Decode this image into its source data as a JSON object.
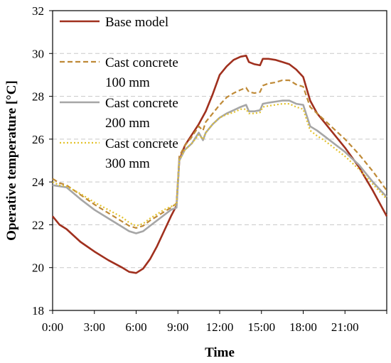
{
  "chart_data": {
    "type": "line",
    "xlabel": "Time",
    "ylabel": "Operative temperature [°C]",
    "ylim": [
      18,
      32
    ],
    "xlim": [
      0,
      24
    ],
    "yticks": [
      "18",
      "20",
      "22",
      "24",
      "26",
      "28",
      "30",
      "32"
    ],
    "xticks": [
      "0:00",
      "3:00",
      "6:00",
      "9:00",
      "12:00",
      "15:00",
      "18:00",
      "21:00"
    ],
    "grid": "horizontal dashed",
    "legend_position": "top-left",
    "series": [
      {
        "name": "Base model",
        "color": "#a0301e",
        "style": "solid",
        "legend_lines": [
          "Base model"
        ],
        "points": [
          [
            0,
            22.4
          ],
          [
            0.5,
            22.0
          ],
          [
            1,
            21.8
          ],
          [
            2,
            21.2
          ],
          [
            3,
            20.75
          ],
          [
            4,
            20.35
          ],
          [
            5,
            20.0
          ],
          [
            5.5,
            19.8
          ],
          [
            6,
            19.75
          ],
          [
            6.5,
            19.95
          ],
          [
            7,
            20.4
          ],
          [
            7.5,
            21.0
          ],
          [
            8,
            21.7
          ],
          [
            8.5,
            22.4
          ],
          [
            8.9,
            22.9
          ],
          [
            9.1,
            25.0
          ],
          [
            9.5,
            25.7
          ],
          [
            10,
            26.2
          ],
          [
            10.5,
            26.7
          ],
          [
            11,
            27.3
          ],
          [
            11.5,
            28.1
          ],
          [
            12,
            29.0
          ],
          [
            12.5,
            29.4
          ],
          [
            13,
            29.7
          ],
          [
            13.5,
            29.85
          ],
          [
            13.9,
            29.9
          ],
          [
            14.1,
            29.6
          ],
          [
            14.5,
            29.5
          ],
          [
            14.9,
            29.45
          ],
          [
            15.1,
            29.75
          ],
          [
            15.5,
            29.75
          ],
          [
            16,
            29.7
          ],
          [
            16.5,
            29.6
          ],
          [
            17,
            29.5
          ],
          [
            17.5,
            29.25
          ],
          [
            18,
            28.9
          ],
          [
            18.5,
            27.8
          ],
          [
            19,
            27.2
          ],
          [
            19.5,
            26.8
          ],
          [
            20,
            26.4
          ],
          [
            21,
            25.6
          ],
          [
            22,
            24.7
          ],
          [
            23,
            23.6
          ],
          [
            24,
            22.4
          ]
        ]
      },
      {
        "name": "Cast concrete 100 mm",
        "color": "#bf8a37",
        "style": "dashed",
        "legend_lines": [
          "Cast concrete",
          "100 mm"
        ],
        "points": [
          [
            0,
            24.15
          ],
          [
            0.5,
            23.95
          ],
          [
            1,
            23.85
          ],
          [
            2,
            23.4
          ],
          [
            3,
            22.95
          ],
          [
            4,
            22.55
          ],
          [
            5,
            22.15
          ],
          [
            5.5,
            21.95
          ],
          [
            6,
            21.85
          ],
          [
            6.5,
            21.95
          ],
          [
            7,
            22.2
          ],
          [
            7.5,
            22.4
          ],
          [
            8,
            22.6
          ],
          [
            8.5,
            22.8
          ],
          [
            8.9,
            23.0
          ],
          [
            9.1,
            25.2
          ],
          [
            9.5,
            25.7
          ],
          [
            10,
            26.1
          ],
          [
            10.5,
            26.6
          ],
          [
            10.8,
            26.4
          ],
          [
            11,
            26.8
          ],
          [
            11.5,
            27.2
          ],
          [
            12,
            27.6
          ],
          [
            12.5,
            27.95
          ],
          [
            13,
            28.15
          ],
          [
            13.5,
            28.3
          ],
          [
            13.9,
            28.4
          ],
          [
            14.1,
            28.2
          ],
          [
            14.5,
            28.15
          ],
          [
            14.9,
            28.2
          ],
          [
            15.1,
            28.5
          ],
          [
            15.5,
            28.6
          ],
          [
            16,
            28.65
          ],
          [
            16.5,
            28.75
          ],
          [
            17,
            28.75
          ],
          [
            17.5,
            28.55
          ],
          [
            18,
            28.45
          ],
          [
            18.5,
            27.5
          ],
          [
            19,
            27.2
          ],
          [
            19.5,
            26.9
          ],
          [
            20,
            26.6
          ],
          [
            21,
            26.0
          ],
          [
            22,
            25.3
          ],
          [
            23,
            24.5
          ],
          [
            24,
            23.6
          ]
        ]
      },
      {
        "name": "Cast concrete 200 mm",
        "color": "#a6a6a6",
        "style": "solid",
        "legend_lines": [
          "Cast concrete",
          "200 mm"
        ],
        "points": [
          [
            0,
            23.85
          ],
          [
            0.5,
            23.8
          ],
          [
            1,
            23.75
          ],
          [
            2,
            23.2
          ],
          [
            3,
            22.7
          ],
          [
            4,
            22.3
          ],
          [
            5,
            21.9
          ],
          [
            5.5,
            21.7
          ],
          [
            6,
            21.6
          ],
          [
            6.5,
            21.7
          ],
          [
            7,
            21.95
          ],
          [
            7.5,
            22.2
          ],
          [
            8,
            22.45
          ],
          [
            8.5,
            22.7
          ],
          [
            8.9,
            22.8
          ],
          [
            9.1,
            25.0
          ],
          [
            9.5,
            25.5
          ],
          [
            10,
            25.8
          ],
          [
            10.5,
            26.3
          ],
          [
            10.8,
            25.95
          ],
          [
            11,
            26.3
          ],
          [
            11.5,
            26.7
          ],
          [
            12,
            27.0
          ],
          [
            12.5,
            27.2
          ],
          [
            13,
            27.35
          ],
          [
            13.5,
            27.5
          ],
          [
            13.9,
            27.6
          ],
          [
            14.1,
            27.3
          ],
          [
            14.5,
            27.3
          ],
          [
            14.9,
            27.35
          ],
          [
            15.1,
            27.65
          ],
          [
            15.5,
            27.7
          ],
          [
            16,
            27.75
          ],
          [
            16.5,
            27.8
          ],
          [
            17,
            27.8
          ],
          [
            17.5,
            27.65
          ],
          [
            18,
            27.6
          ],
          [
            18.5,
            26.6
          ],
          [
            19,
            26.4
          ],
          [
            19.5,
            26.15
          ],
          [
            20,
            25.9
          ],
          [
            21,
            25.4
          ],
          [
            22,
            24.8
          ],
          [
            23,
            24.0
          ],
          [
            24,
            23.3
          ]
        ]
      },
      {
        "name": "Cast concrete 300 mm",
        "color": "#e3c22b",
        "style": "dotted",
        "legend_lines": [
          "Cast concrete",
          "300 mm"
        ],
        "points": [
          [
            0,
            24.0
          ],
          [
            0.5,
            23.85
          ],
          [
            1,
            23.8
          ],
          [
            2,
            23.45
          ],
          [
            3,
            23.05
          ],
          [
            4,
            22.7
          ],
          [
            5,
            22.35
          ],
          [
            5.5,
            22.1
          ],
          [
            6,
            21.95
          ],
          [
            6.5,
            22.05
          ],
          [
            7,
            22.3
          ],
          [
            7.5,
            22.5
          ],
          [
            8,
            22.7
          ],
          [
            8.5,
            22.85
          ],
          [
            8.9,
            22.95
          ],
          [
            9.1,
            25.0
          ],
          [
            9.5,
            25.5
          ],
          [
            10,
            25.8
          ],
          [
            10.5,
            26.2
          ],
          [
            10.8,
            26.0
          ],
          [
            11,
            26.3
          ],
          [
            11.5,
            26.7
          ],
          [
            12,
            27.0
          ],
          [
            12.5,
            27.15
          ],
          [
            13,
            27.25
          ],
          [
            13.5,
            27.4
          ],
          [
            13.9,
            27.4
          ],
          [
            14.1,
            27.2
          ],
          [
            14.5,
            27.2
          ],
          [
            14.9,
            27.25
          ],
          [
            15.1,
            27.5
          ],
          [
            15.5,
            27.55
          ],
          [
            16,
            27.6
          ],
          [
            16.5,
            27.65
          ],
          [
            17,
            27.65
          ],
          [
            17.5,
            27.5
          ],
          [
            18,
            27.4
          ],
          [
            18.5,
            26.4
          ],
          [
            19,
            26.15
          ],
          [
            19.5,
            25.95
          ],
          [
            20,
            25.7
          ],
          [
            21,
            25.2
          ],
          [
            22,
            24.6
          ],
          [
            23,
            23.9
          ],
          [
            24,
            23.2
          ]
        ]
      }
    ]
  }
}
